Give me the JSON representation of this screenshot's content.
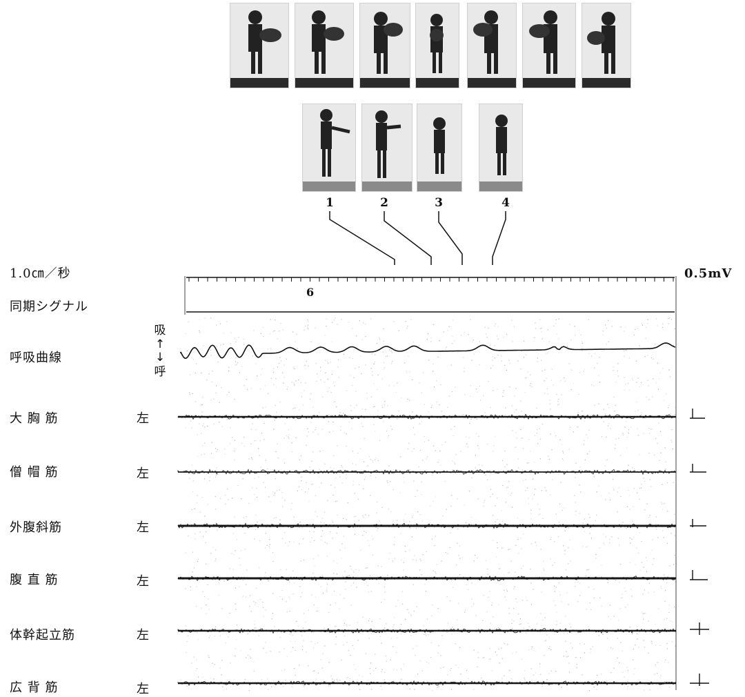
{
  "frame_numbers": [
    "1",
    "2",
    "3",
    "4"
  ],
  "time_scale_label": "1.0㎝／秒",
  "sync_label": "同期シグナル",
  "sync_number": "6",
  "amp_label": "0.5mV",
  "resp_label": "呼吸曲線",
  "resp_inhale": "吸",
  "resp_exhale": "呼",
  "muscles": [
    {
      "name": "大 胸 筋",
      "side": "左"
    },
    {
      "name": "僧 帽 筋",
      "side": "左"
    },
    {
      "name": "外腹斜筋",
      "side": "左"
    },
    {
      "name": "腹 直 筋",
      "side": "左"
    },
    {
      "name": "体幹起立筋",
      "side": "左"
    },
    {
      "name": "広 背 筋",
      "side": "左"
    }
  ]
}
